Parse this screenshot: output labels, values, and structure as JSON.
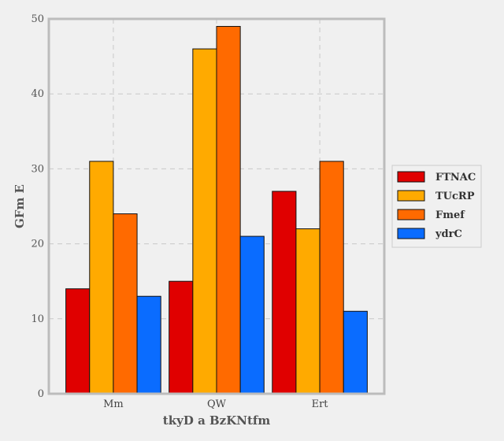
{
  "chart_data": {
    "type": "bar",
    "title": "",
    "xlabel": "tkyD a BzKNtfm",
    "ylabel": "GFm E",
    "categories": [
      "Mm",
      "QW",
      "Ert"
    ],
    "series": [
      {
        "name": "FTNAC",
        "values": [
          14,
          15,
          27
        ],
        "color": "#e00000"
      },
      {
        "name": "TUcRP",
        "values": [
          31,
          46,
          22
        ],
        "color": "#ffaa00"
      },
      {
        "name": "Fmef",
        "values": [
          24,
          49,
          31
        ],
        "color": "#ff6a00"
      },
      {
        "name": "ydrC",
        "values": [
          13,
          21,
          11
        ],
        "color": "#0a6cff"
      }
    ],
    "ylim": [
      0,
      50
    ],
    "yticks": [
      0,
      10,
      20,
      30,
      40,
      50
    ],
    "grid": true,
    "legend": "right"
  }
}
